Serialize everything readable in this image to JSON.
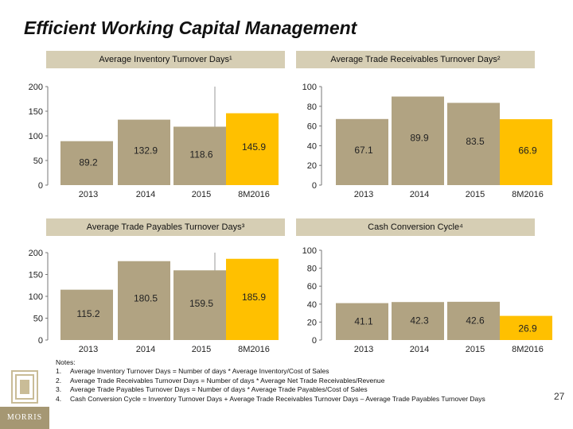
{
  "title": "Efficient Working Capital Management",
  "colors": {
    "bar": "#b1a382",
    "highlight": "#ffc000",
    "band": "#d6ceb4",
    "axis": "#777777"
  },
  "chart_data": [
    {
      "type": "bar",
      "title": "Average Inventory Turnover Days¹",
      "categories": [
        "2013",
        "2014",
        "2015",
        "8M2016"
      ],
      "values": [
        89.2,
        132.9,
        118.6,
        145.9
      ],
      "value_labels": [
        "89.2",
        "132.9",
        "118.6",
        "145.9"
      ],
      "highlight_index": 3,
      "ylim": [
        0,
        200
      ],
      "yticks": [
        "0",
        "50",
        "100",
        "150",
        "200"
      ],
      "ytick_values": [
        0,
        50,
        100,
        150,
        200
      ]
    },
    {
      "type": "bar",
      "title": "Average Trade Receivables Turnover Days²",
      "categories": [
        "2013",
        "2014",
        "2015",
        "8M2016"
      ],
      "values": [
        67.1,
        89.9,
        83.5,
        66.9
      ],
      "value_labels": [
        "67.1",
        "89.9",
        "83.5",
        "66.9"
      ],
      "highlight_index": 3,
      "ylim": [
        0,
        100
      ],
      "yticks": [
        "0",
        "20",
        "40",
        "60",
        "80",
        "100"
      ],
      "ytick_values": [
        0,
        20,
        40,
        60,
        80,
        100
      ]
    },
    {
      "type": "bar",
      "title": "Average Trade Payables Turnover Days³",
      "categories": [
        "2013",
        "2014",
        "2015",
        "8M2016"
      ],
      "values": [
        115.2,
        180.5,
        159.5,
        185.9
      ],
      "value_labels": [
        "115.2",
        "180.5",
        "159.5",
        "185.9"
      ],
      "highlight_index": 3,
      "ylim": [
        0,
        200
      ],
      "yticks": [
        "0",
        "50",
        "100",
        "150",
        "200"
      ],
      "ytick_values": [
        0,
        50,
        100,
        150,
        200
      ]
    },
    {
      "type": "bar",
      "title": "Cash Conversion Cycle⁴",
      "categories": [
        "2013",
        "2014",
        "2015",
        "8M2016"
      ],
      "values": [
        41.1,
        42.3,
        42.6,
        26.9
      ],
      "value_labels": [
        "41.1",
        "42.3",
        "42.6",
        "26.9"
      ],
      "highlight_index": 3,
      "ylim": [
        0,
        100
      ],
      "yticks": [
        "0",
        "20",
        "40",
        "60",
        "80",
        "100"
      ],
      "ytick_values": [
        0,
        20,
        40,
        60,
        80,
        100
      ]
    }
  ],
  "notes": {
    "heading": "Notes:",
    "items": [
      {
        "num": "1.",
        "text": "Average Inventory Turnover Days = Number of days * Average Inventory/Cost of Sales"
      },
      {
        "num": "2.",
        "text": "Average Trade Receivables Turnover Days = Number of days * Average Net Trade Receivables/Revenue"
      },
      {
        "num": "3.",
        "text": "Average Trade Payables Turnover Days = Number of days * Average Trade Payables/Cost of Sales"
      },
      {
        "num": "4.",
        "text": "Cash Conversion Cycle = Inventory Turnover Days + Average Trade Receivables Turnover Days – Average Trade Payables Turnover Days"
      }
    ]
  },
  "logo_text": "MORRIS",
  "page_number": "27"
}
